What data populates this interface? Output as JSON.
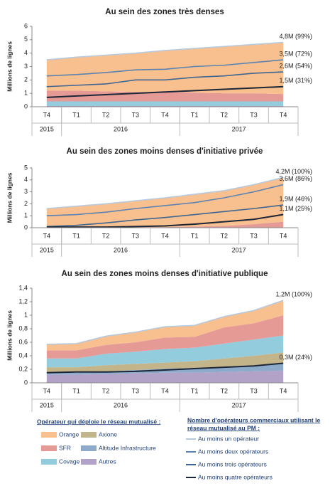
{
  "chart_data": [
    {
      "type": "stacked-area",
      "title": "Au sein des zones très denses",
      "y_label": "Millions de lignes",
      "categories": [
        "T4",
        "T1",
        "T2",
        "T3",
        "T4",
        "T1",
        "T2",
        "T3",
        "T4"
      ],
      "years": [
        {
          "label": "2015",
          "span": 1
        },
        {
          "label": "2016",
          "span": 4
        },
        {
          "label": "2017",
          "span": 4
        }
      ],
      "ylim": [
        0,
        6
      ],
      "yticks": [
        0,
        1,
        2,
        3,
        4,
        5,
        6
      ],
      "area_values": [
        [
          2.3,
          2.5,
          2.7,
          2.9,
          3.1,
          3.3,
          3.5,
          3.65,
          3.85
        ],
        [
          0.8,
          0.8,
          0.75,
          0.7,
          0.7,
          0.65,
          0.6,
          0.6,
          0.55
        ],
        [
          0.35,
          0.35,
          0.35,
          0.35,
          0.35,
          0.35,
          0.35,
          0.35,
          0.35
        ],
        [
          0,
          0,
          0,
          0,
          0,
          0,
          0,
          0,
          0
        ],
        [
          0,
          0,
          0,
          0,
          0,
          0,
          0,
          0,
          0
        ],
        [
          0.05,
          0.05,
          0.05,
          0.05,
          0.05,
          0.05,
          0.05,
          0.05,
          0.05
        ]
      ],
      "line_values": [
        [
          3.5,
          3.7,
          3.85,
          4.0,
          4.2,
          4.35,
          4.5,
          4.65,
          4.8
        ],
        [
          2.3,
          2.4,
          2.55,
          2.75,
          2.8,
          3.0,
          3.1,
          3.3,
          3.5
        ],
        [
          1.5,
          1.6,
          1.7,
          2.0,
          2.0,
          2.2,
          2.3,
          2.5,
          2.6
        ],
        [
          0.7,
          0.8,
          0.9,
          1.0,
          1.1,
          1.2,
          1.3,
          1.4,
          1.5
        ]
      ],
      "end_labels": [
        "4,8M (99%)",
        "3,5M (72%)",
        "2,6M (54%)",
        "1,5M (31%)"
      ]
    },
    {
      "type": "stacked-area",
      "title": "Au sein des zones moins denses d'initiative privée",
      "y_label": "Millions de lignes",
      "categories": [
        "T4",
        "T1",
        "T2",
        "T3",
        "T4",
        "T1",
        "T2",
        "T3",
        "T4"
      ],
      "years": [
        {
          "label": "2015",
          "span": 1
        },
        {
          "label": "2016",
          "span": 4
        },
        {
          "label": "2017",
          "span": 4
        }
      ],
      "ylim": [
        0,
        5
      ],
      "yticks": [
        0,
        1,
        2,
        3,
        4,
        5
      ],
      "area_values": [
        [
          1.55,
          1.75,
          1.95,
          2.2,
          2.45,
          2.7,
          2.95,
          3.3,
          3.7
        ],
        [
          0.05,
          0.05,
          0.05,
          0.05,
          0.05,
          0.1,
          0.15,
          0.3,
          0.5
        ],
        [
          0,
          0,
          0,
          0,
          0,
          0,
          0,
          0,
          0
        ],
        [
          0,
          0,
          0,
          0,
          0,
          0,
          0,
          0,
          0
        ],
        [
          0,
          0,
          0,
          0,
          0,
          0,
          0,
          0,
          0
        ],
        [
          0,
          0,
          0,
          0,
          0,
          0,
          0,
          0,
          0
        ]
      ],
      "line_values": [
        [
          1.6,
          1.8,
          2.0,
          2.25,
          2.5,
          2.8,
          3.1,
          3.6,
          4.2
        ],
        [
          1.0,
          1.1,
          1.3,
          1.6,
          1.85,
          2.1,
          2.5,
          3.0,
          3.6
        ],
        [
          0.1,
          0.2,
          0.4,
          0.65,
          0.85,
          1.1,
          1.35,
          1.6,
          1.9
        ],
        [
          0.05,
          0.05,
          0.05,
          0.1,
          0.15,
          0.3,
          0.5,
          0.7,
          1.1
        ]
      ],
      "end_labels": [
        "4,2M (100%)",
        "3,6M (86%)",
        "1,9M (46%)",
        "1,1M (25%)"
      ]
    },
    {
      "type": "stacked-area",
      "title": "Au sein des zones moins denses d'initiative publique",
      "y_label": "Millions de lignes",
      "categories": [
        "T4",
        "T1",
        "T2",
        "T3",
        "T4",
        "T1",
        "T2",
        "T3",
        "T4"
      ],
      "years": [
        {
          "label": "2015",
          "span": 1
        },
        {
          "label": "2016",
          "span": 4
        },
        {
          "label": "2017",
          "span": 4
        }
      ],
      "ylim": [
        0,
        1.4
      ],
      "yticks": [
        0,
        {
          "value": 0.2,
          "label": "0,2"
        },
        {
          "value": 0.4,
          "label": "0,4"
        },
        {
          "value": 0.6,
          "label": "0,6"
        },
        {
          "value": 0.8,
          "label": "0,8"
        },
        1,
        {
          "value": 1.2,
          "label": "1,2"
        },
        {
          "value": 1.4,
          "label": "1,4"
        }
      ],
      "area_values": [
        [
          0.09,
          0.1,
          0.13,
          0.15,
          0.16,
          0.17,
          0.16,
          0.19,
          0.22
        ],
        [
          0.12,
          0.12,
          0.13,
          0.14,
          0.17,
          0.16,
          0.24,
          0.24,
          0.3
        ],
        [
          0.13,
          0.13,
          0.17,
          0.18,
          0.2,
          0.2,
          0.22,
          0.24,
          0.25
        ],
        [
          0.08,
          0.08,
          0.09,
          0.09,
          0.09,
          0.1,
          0.12,
          0.14,
          0.17
        ],
        [
          0.03,
          0.03,
          0.04,
          0.05,
          0.06,
          0.07,
          0.08,
          0.09,
          0.1
        ],
        [
          0.12,
          0.12,
          0.13,
          0.14,
          0.15,
          0.15,
          0.16,
          0.17,
          0.18
        ]
      ],
      "line_values": [
        [
          0.57,
          0.58,
          0.69,
          0.75,
          0.83,
          0.85,
          0.98,
          1.07,
          1.22
        ],
        [
          null,
          null,
          null,
          null,
          null,
          null,
          null,
          null,
          null
        ],
        [
          null,
          null,
          null,
          null,
          null,
          null,
          null,
          null,
          null
        ],
        [
          0.15,
          0.16,
          0.16,
          0.17,
          0.19,
          0.21,
          0.23,
          0.25,
          0.29
        ]
      ],
      "end_labels": [
        "1,2M (100%)",
        null,
        null,
        "0,3M (24%)"
      ]
    }
  ],
  "legend": {
    "area_title": "Opérateur qui déploie le réseau mutualisé :",
    "area_series": [
      {
        "name": "Orange",
        "color": "#f9c08f"
      },
      {
        "name": "SFR",
        "color": "#e69a96"
      },
      {
        "name": "Covage",
        "color": "#93cddd"
      },
      {
        "name": "Axione",
        "color": "#c4b48a"
      },
      {
        "name": "Altitude Infrastructure",
        "color": "#8eaacb"
      },
      {
        "name": "Autres",
        "color": "#b3a2c7"
      }
    ],
    "line_title": [
      "Nombre d'opérateurs commerciaux utilisant le",
      "réseau mutualisé au PM :"
    ],
    "line_series": [
      {
        "name": "Au moins un opérateur",
        "color": "#b7c9dc"
      },
      {
        "name": "Au moins deux opérateurs",
        "color": "#5b82b0"
      },
      {
        "name": "Au moins trois opérateurs",
        "color": "#3e6690"
      },
      {
        "name": "Au moins quatre opérateurs",
        "color": "#1c2636"
      }
    ]
  }
}
